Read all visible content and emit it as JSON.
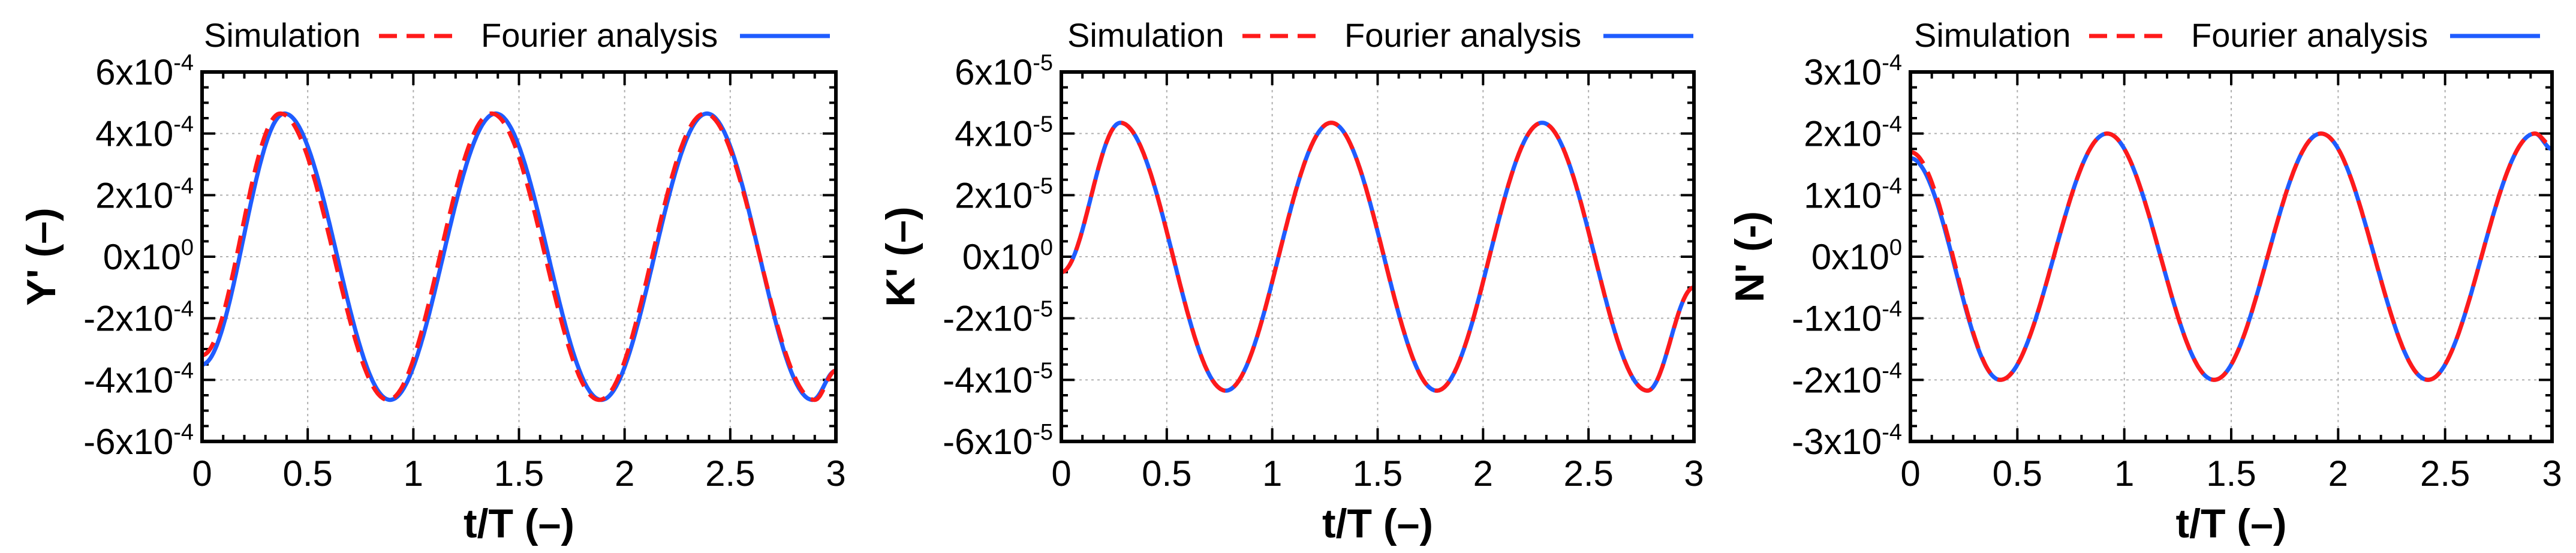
{
  "colors": {
    "simulation": "#ff1a1a",
    "fourier": "#1f5cff"
  },
  "chart_data": [
    {
      "type": "line",
      "xlabel": "t/T (–)",
      "ylabel": "Y' (–)",
      "xlim": [
        0,
        3
      ],
      "ylim": [
        -0.0006,
        0.0006
      ],
      "xticks": [
        "0",
        "0.5",
        "1",
        "1.5",
        "2",
        "2.5",
        "3"
      ],
      "yticks": [
        {
          "mant": "6x10",
          "exp": "-4"
        },
        {
          "mant": "4x10",
          "exp": "-4"
        },
        {
          "mant": "2x10",
          "exp": "-4"
        },
        {
          "mant": "0x10",
          "exp": "0"
        },
        {
          "mant": "-2x10",
          "exp": "-4"
        },
        {
          "mant": "-4x10",
          "exp": "-4"
        },
        {
          "mant": "-6x10",
          "exp": "-4"
        }
      ],
      "grid": true,
      "legend_position": "top",
      "series": [
        {
          "name": "Simulation",
          "style": "dashed",
          "amplitude": 0.000465,
          "peak_t": [
            0.37,
            1.37,
            2.38
          ],
          "trough_t": [
            0.88,
            1.88,
            2.9
          ],
          "start": -0.00032,
          "end": -0.00037
        },
        {
          "name": "Fourier analysis",
          "style": "solid",
          "amplitude": 0.000465,
          "peak_t": [
            0.39,
            1.39,
            2.39
          ],
          "trough_t": [
            0.89,
            1.89,
            2.89
          ],
          "start": -0.00035,
          "end": -0.00037
        }
      ]
    },
    {
      "type": "line",
      "xlabel": "t/T (–)",
      "ylabel": "K' (–)",
      "xlim": [
        0,
        3
      ],
      "ylim": [
        -6e-05,
        6e-05
      ],
      "xticks": [
        "0",
        "0.5",
        "1",
        "1.5",
        "2",
        "2.5",
        "3"
      ],
      "yticks": [
        {
          "mant": "6x10",
          "exp": "-5"
        },
        {
          "mant": "4x10",
          "exp": "-5"
        },
        {
          "mant": "2x10",
          "exp": "-5"
        },
        {
          "mant": "0x10",
          "exp": "0"
        },
        {
          "mant": "-2x10",
          "exp": "-5"
        },
        {
          "mant": "-4x10",
          "exp": "-5"
        },
        {
          "mant": "-6x10",
          "exp": "-5"
        }
      ],
      "grid": true,
      "legend_position": "top",
      "series": [
        {
          "name": "Simulation",
          "style": "dashed",
          "amplitude": 4.35e-05,
          "peak_t": [
            0.28,
            1.28,
            2.28
          ],
          "trough_t": [
            0.78,
            1.78,
            2.78
          ],
          "start": -5e-06,
          "end": -1e-05
        },
        {
          "name": "Fourier analysis",
          "style": "solid",
          "amplitude": 4.35e-05,
          "peak_t": [
            0.28,
            1.28,
            2.28
          ],
          "trough_t": [
            0.78,
            1.78,
            2.78
          ],
          "start": -5e-06,
          "end": -1e-05
        }
      ]
    },
    {
      "type": "line",
      "xlabel": "t/T (–)",
      "ylabel": "N' (-)",
      "xlim": [
        0,
        3
      ],
      "ylim": [
        -0.0003,
        0.0003
      ],
      "xticks": [
        "0",
        "0.5",
        "1",
        "1.5",
        "2",
        "2.5",
        "3"
      ],
      "yticks": [
        {
          "mant": "3x10",
          "exp": "-4"
        },
        {
          "mant": "2x10",
          "exp": "-4"
        },
        {
          "mant": "1x10",
          "exp": "-4"
        },
        {
          "mant": "0x10",
          "exp": "0"
        },
        {
          "mant": "-1x10",
          "exp": "-4"
        },
        {
          "mant": "-2x10",
          "exp": "-4"
        },
        {
          "mant": "-3x10",
          "exp": "-4"
        }
      ],
      "grid": true,
      "legend_position": "top",
      "series": [
        {
          "name": "Simulation",
          "style": "dashed",
          "amplitude": 0.0002,
          "peak_t": [
            0.92,
            1.92,
            2.92
          ],
          "trough_t": [
            0.42,
            1.42,
            2.42
          ],
          "start": 0.00017,
          "end": 0.00018
        },
        {
          "name": "Fourier analysis",
          "style": "solid",
          "amplitude": 0.0002,
          "peak_t": [
            0.92,
            1.92,
            2.92
          ],
          "trough_t": [
            0.42,
            1.42,
            2.42
          ],
          "start": 0.00016,
          "end": 0.000175
        }
      ]
    }
  ]
}
